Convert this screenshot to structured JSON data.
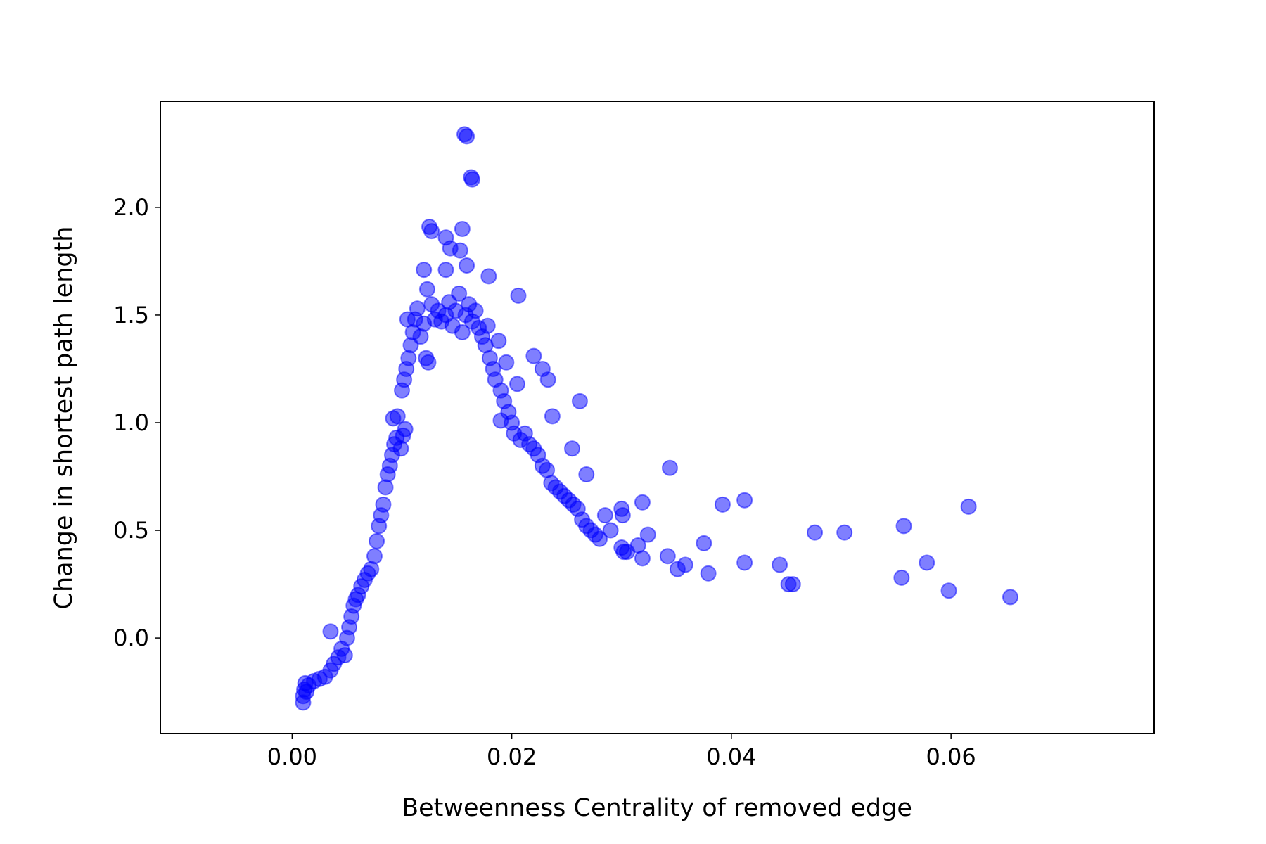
{
  "chart_data": {
    "type": "scatter",
    "xlabel": "Betweenness Centrality of removed edge",
    "ylabel": "Change in shortest path length",
    "color": "#0000ff",
    "alpha": 0.5,
    "grid": false,
    "xlim": [
      -0.012,
      0.0785
    ],
    "ylim": [
      -0.444,
      2.493
    ],
    "xticks": [
      {
        "value": 0,
        "label": "0.00"
      },
      {
        "value": 0.02,
        "label": "0.02"
      },
      {
        "value": 0.04,
        "label": "0.04"
      },
      {
        "value": 0.06,
        "label": "0.06"
      }
    ],
    "yticks": [
      {
        "value": 0,
        "label": "0.0"
      },
      0.5,
      {
        "value": 1,
        "label": "1.0"
      },
      1.5,
      {
        "value": 2,
        "label": "2.0"
      }
    ],
    "x": [
      0.001,
      0.001,
      0.0011,
      0.0012,
      0.0013,
      0.0015,
      0.002,
      0.0025,
      0.003,
      0.0035,
      0.0038,
      0.0042,
      0.0045,
      0.0048,
      0.005,
      0.0052,
      0.0054,
      0.0056,
      0.0058,
      0.006,
      0.0063,
      0.0066,
      0.0069,
      0.0072,
      0.0075,
      0.0077,
      0.0079,
      0.0081,
      0.0083,
      0.0085,
      0.0087,
      0.0089,
      0.0091,
      0.0093,
      0.0095,
      0.0092,
      0.0096,
      0.0099,
      0.0101,
      0.0103,
      0.01,
      0.0102,
      0.0104,
      0.0106,
      0.0108,
      0.0105,
      0.011,
      0.0112,
      0.0114,
      0.0117,
      0.012,
      0.0122,
      0.0124,
      0.0123,
      0.0127,
      0.013,
      0.0133,
      0.0136,
      0.014,
      0.0143,
      0.0146,
      0.0149,
      0.0152,
      0.0155,
      0.0158,
      0.0161,
      0.0164,
      0.0167,
      0.017,
      0.0173,
      0.0176,
      0.0178,
      0.018,
      0.0183,
      0.0185,
      0.0188,
      0.019,
      0.0193,
      0.0195,
      0.0197,
      0.02,
      0.0202,
      0.0205,
      0.0208,
      0.0212,
      0.0216,
      0.022,
      0.0224,
      0.0228,
      0.0232,
      0.0236,
      0.024,
      0.0244,
      0.0248,
      0.0252,
      0.0256,
      0.026,
      0.0264,
      0.0268,
      0.0272,
      0.0276,
      0.028,
      0.029,
      0.03,
      0.0305,
      0.0315,
      0.0157,
      0.0159,
      0.0164,
      0.0163,
      0.0125,
      0.0127,
      0.0155,
      0.014,
      0.0144,
      0.0153,
      0.012,
      0.014,
      0.0159,
      0.0179,
      0.0206,
      0.0262,
      0.0344,
      0.0319,
      0.0392,
      0.0412,
      0.0476,
      0.0503,
      0.0557,
      0.0616,
      0.0578,
      0.0555,
      0.0598,
      0.0654,
      0.0444,
      0.0452,
      0.0456,
      0.0412,
      0.0379,
      0.0375,
      0.0358,
      0.0351,
      0.0342,
      0.0324,
      0.0319,
      0.03,
      0.0301,
      0.0302,
      0.0285,
      0.0035,
      0.022,
      0.0228,
      0.0233,
      0.0255,
      0.0268,
      0.0237,
      0.019
    ],
    "values": [
      -0.3,
      -0.27,
      -0.24,
      -0.21,
      -0.25,
      -0.22,
      -0.2,
      -0.19,
      -0.18,
      -0.15,
      -0.12,
      -0.09,
      -0.05,
      -0.08,
      0.0,
      0.05,
      0.1,
      0.15,
      0.18,
      0.2,
      0.24,
      0.27,
      0.3,
      0.32,
      0.38,
      0.45,
      0.52,
      0.57,
      0.62,
      0.7,
      0.76,
      0.8,
      0.85,
      0.9,
      0.93,
      1.02,
      1.03,
      0.88,
      0.94,
      0.97,
      1.15,
      1.2,
      1.25,
      1.3,
      1.36,
      1.48,
      1.42,
      1.48,
      1.53,
      1.4,
      1.46,
      1.3,
      1.28,
      1.62,
      1.55,
      1.48,
      1.52,
      1.47,
      1.5,
      1.56,
      1.45,
      1.52,
      1.6,
      1.42,
      1.5,
      1.55,
      1.47,
      1.52,
      1.44,
      1.4,
      1.36,
      1.45,
      1.3,
      1.25,
      1.2,
      1.38,
      1.15,
      1.1,
      1.28,
      1.05,
      1.0,
      0.95,
      1.18,
      0.92,
      0.95,
      0.9,
      0.88,
      0.85,
      0.8,
      0.78,
      0.72,
      0.7,
      0.68,
      0.66,
      0.64,
      0.62,
      0.6,
      0.55,
      0.52,
      0.5,
      0.48,
      0.46,
      0.5,
      0.42,
      0.4,
      0.43,
      2.34,
      2.33,
      2.13,
      2.14,
      1.91,
      1.89,
      1.9,
      1.86,
      1.81,
      1.8,
      1.71,
      1.71,
      1.73,
      1.68,
      1.59,
      1.1,
      0.79,
      0.63,
      0.62,
      0.64,
      0.49,
      0.49,
      0.52,
      0.61,
      0.35,
      0.28,
      0.22,
      0.19,
      0.34,
      0.25,
      0.25,
      0.35,
      0.3,
      0.44,
      0.34,
      0.32,
      0.38,
      0.48,
      0.37,
      0.6,
      0.57,
      0.4,
      0.57,
      0.03,
      1.31,
      1.25,
      1.2,
      0.88,
      0.76,
      1.03,
      1.01
    ]
  }
}
